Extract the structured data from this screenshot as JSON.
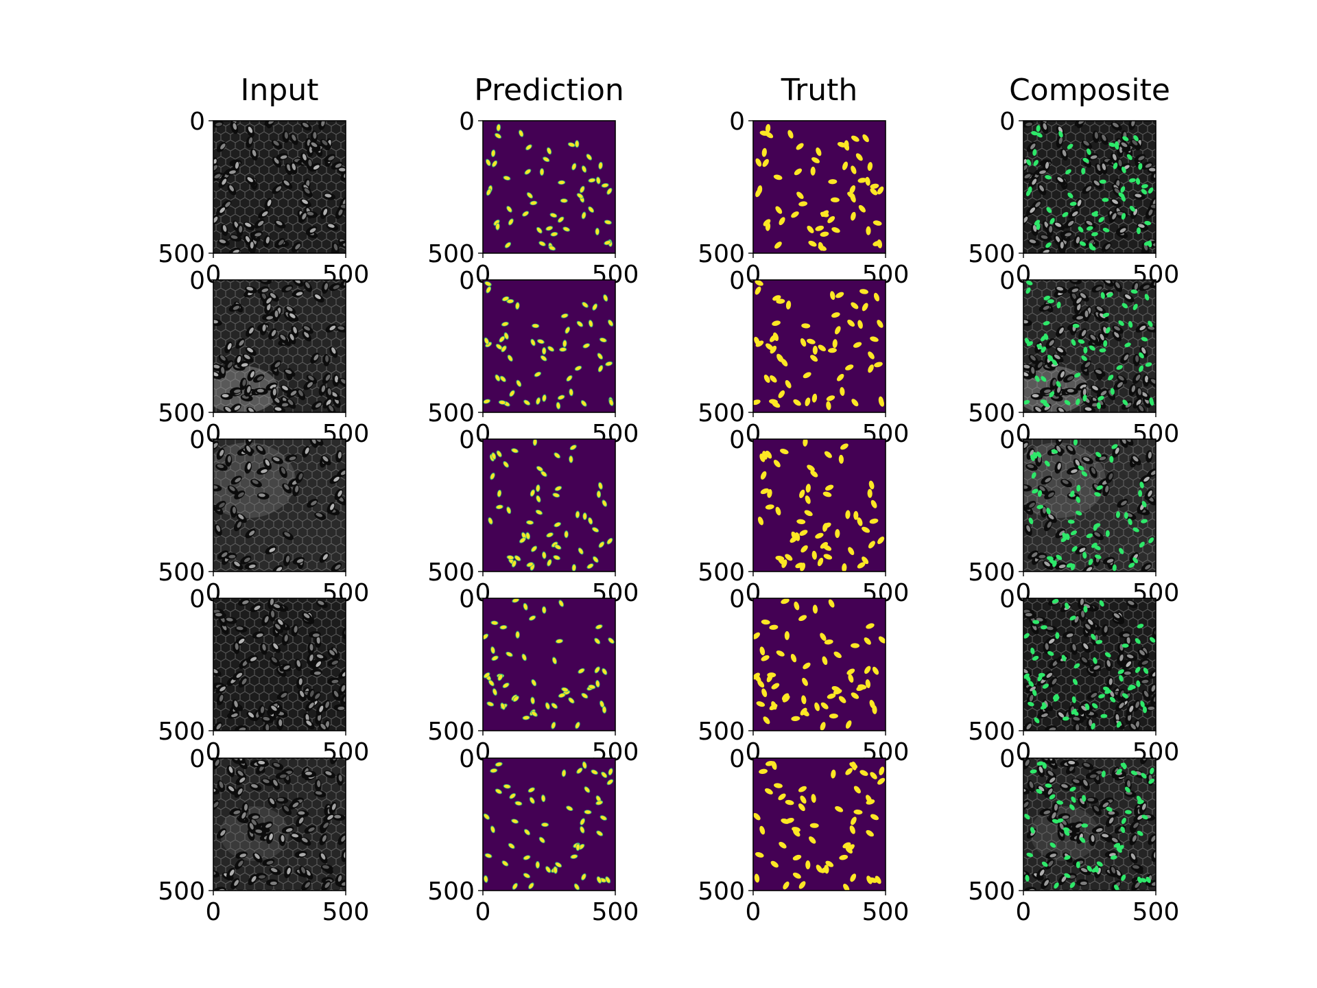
{
  "chart_data": {
    "type": "image-grid",
    "columns": [
      "Input",
      "Prediction",
      "Truth",
      "Composite"
    ],
    "rows": 5,
    "xlim": [
      0,
      500
    ],
    "ylim": [
      500,
      0
    ],
    "xticks": [
      0,
      500
    ],
    "yticks": [
      0,
      500
    ],
    "tick_labels": {
      "x": [
        "0",
        "500"
      ],
      "y": [
        "0",
        "500"
      ]
    },
    "mask_colors": {
      "background": "#440154",
      "object": "#fde725",
      "object_edge": "#35b779"
    },
    "composite_overlay_color": "#2ee86a",
    "input_colormap": "gray",
    "grid": false
  },
  "panel_kinds": [
    "input",
    "prediction",
    "truth",
    "composite"
  ]
}
